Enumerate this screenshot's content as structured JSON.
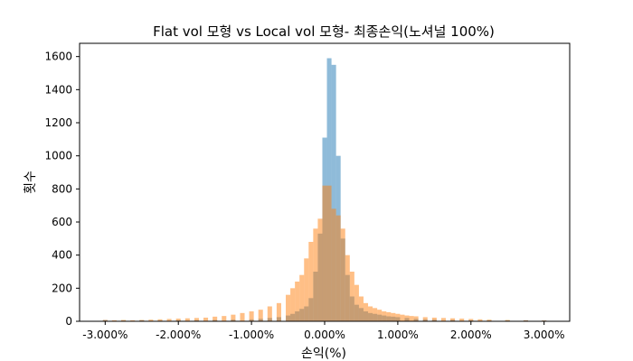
{
  "chart_data": {
    "type": "bar",
    "subtype": "overlaid-histogram",
    "title": "Flat vol 모형 vs Local vol 모형- 최종손익(노셔널 100%)",
    "xlabel": "손익(%)",
    "ylabel": "횟수",
    "xlim": [
      -3.35,
      3.35
    ],
    "ylim": [
      0,
      1680
    ],
    "grid": false,
    "x_ticks": [
      -3,
      -2,
      -1,
      0,
      1,
      2,
      3
    ],
    "x_tick_labels": [
      "-3.000%",
      "-2.000%",
      "-1.000%",
      "0.000%",
      "1.000%",
      "2.000%",
      "3.000%"
    ],
    "y_ticks": [
      0,
      200,
      400,
      600,
      800,
      1000,
      1200,
      1400,
      1600
    ],
    "y_tick_labels": [
      "0",
      "200",
      "400",
      "600",
      "800",
      "1000",
      "1200",
      "1400",
      "1600"
    ],
    "bin_width": 0.0625,
    "series": [
      {
        "color": "#1f77b4",
        "opacity": 0.5,
        "bins": [
          [
            -3.0,
            8
          ],
          [
            -2.75,
            4
          ],
          [
            -2.5,
            6
          ],
          [
            -2.25,
            4
          ],
          [
            -2.0,
            6
          ],
          [
            -1.75,
            6
          ],
          [
            -1.5,
            8
          ],
          [
            -1.25,
            10
          ],
          [
            -1.0,
            12
          ],
          [
            -0.875,
            15
          ],
          [
            -0.75,
            20
          ],
          [
            -0.625,
            25
          ],
          [
            -0.5,
            35
          ],
          [
            -0.4375,
            45
          ],
          [
            -0.375,
            60
          ],
          [
            -0.3125,
            75
          ],
          [
            -0.25,
            90
          ],
          [
            -0.1875,
            140
          ],
          [
            -0.125,
            300
          ],
          [
            -0.0625,
            530
          ],
          [
            0.0,
            1110
          ],
          [
            0.0625,
            1590
          ],
          [
            0.125,
            1550
          ],
          [
            0.1875,
            1000
          ],
          [
            0.25,
            500
          ],
          [
            0.3125,
            280
          ],
          [
            0.375,
            150
          ],
          [
            0.4375,
            100
          ],
          [
            0.5,
            80
          ],
          [
            0.5625,
            60
          ],
          [
            0.625,
            50
          ],
          [
            0.6875,
            45
          ],
          [
            0.75,
            40
          ],
          [
            0.8125,
            35
          ],
          [
            0.875,
            30
          ],
          [
            0.9375,
            28
          ],
          [
            1.0,
            25
          ],
          [
            1.125,
            20
          ],
          [
            1.25,
            15
          ],
          [
            1.375,
            12
          ],
          [
            1.5,
            10
          ],
          [
            1.75,
            8
          ],
          [
            2.0,
            6
          ],
          [
            2.25,
            5
          ],
          [
            2.5,
            5
          ],
          [
            2.75,
            6
          ],
          [
            3.0,
            5
          ]
        ]
      },
      {
        "color": "#ff7f0e",
        "opacity": 0.5,
        "bins": [
          [
            -3.0,
            8
          ],
          [
            -2.875,
            6
          ],
          [
            -2.75,
            8
          ],
          [
            -2.625,
            6
          ],
          [
            -2.5,
            8
          ],
          [
            -2.375,
            10
          ],
          [
            -2.25,
            12
          ],
          [
            -2.125,
            14
          ],
          [
            -2.0,
            16
          ],
          [
            -1.875,
            18
          ],
          [
            -1.75,
            20
          ],
          [
            -1.625,
            22
          ],
          [
            -1.5,
            28
          ],
          [
            -1.375,
            32
          ],
          [
            -1.25,
            40
          ],
          [
            -1.125,
            50
          ],
          [
            -1.0,
            60
          ],
          [
            -0.875,
            70
          ],
          [
            -0.75,
            90
          ],
          [
            -0.625,
            110
          ],
          [
            -0.5,
            160
          ],
          [
            -0.4375,
            200
          ],
          [
            -0.375,
            240
          ],
          [
            -0.3125,
            280
          ],
          [
            -0.25,
            380
          ],
          [
            -0.1875,
            480
          ],
          [
            -0.125,
            560
          ],
          [
            -0.0625,
            620
          ],
          [
            0.0,
            820
          ],
          [
            0.0625,
            820
          ],
          [
            0.125,
            680
          ],
          [
            0.1875,
            640
          ],
          [
            0.25,
            560
          ],
          [
            0.3125,
            400
          ],
          [
            0.375,
            300
          ],
          [
            0.4375,
            220
          ],
          [
            0.5,
            150
          ],
          [
            0.5625,
            110
          ],
          [
            0.625,
            90
          ],
          [
            0.6875,
            80
          ],
          [
            0.75,
            70
          ],
          [
            0.8125,
            60
          ],
          [
            0.875,
            55
          ],
          [
            0.9375,
            50
          ],
          [
            1.0,
            45
          ],
          [
            1.0625,
            40
          ],
          [
            1.125,
            35
          ],
          [
            1.1875,
            32
          ],
          [
            1.25,
            30
          ],
          [
            1.375,
            25
          ],
          [
            1.5,
            22
          ],
          [
            1.625,
            20
          ],
          [
            1.75,
            18
          ],
          [
            1.875,
            16
          ],
          [
            2.0,
            14
          ],
          [
            2.125,
            12
          ],
          [
            2.25,
            10
          ],
          [
            2.5,
            8
          ],
          [
            2.75,
            6
          ],
          [
            3.0,
            5
          ]
        ]
      }
    ]
  }
}
